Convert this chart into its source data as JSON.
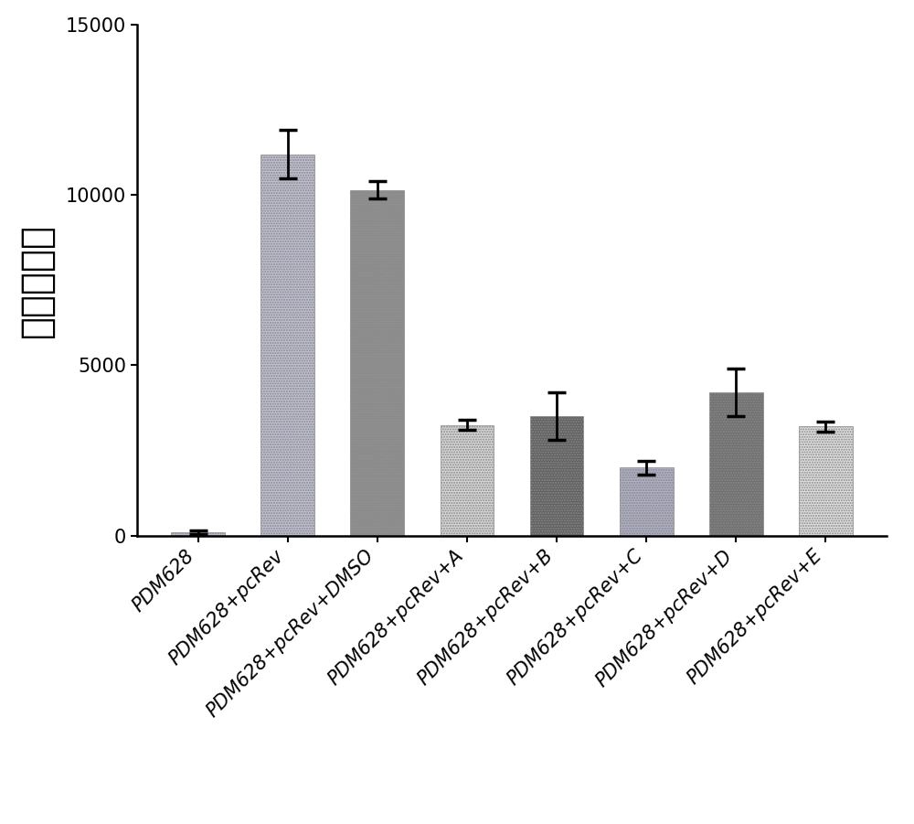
{
  "categories": [
    "PDM628",
    "PDM628+pcRev",
    "PDM628+pcRev+DMSO",
    "PDM628+pcRev+A",
    "PDM628+pcRev+B",
    "PDM628+pcRev+C",
    "PDM628+pcRev+D",
    "PDM628+pcRev+E"
  ],
  "values": [
    100,
    11200,
    10150,
    3250,
    3500,
    2000,
    4200,
    3200
  ],
  "errors": [
    50,
    700,
    250,
    150,
    700,
    200,
    700,
    150
  ],
  "bar_colors": [
    "#c0c0d4",
    "#c0c0d4",
    "#909090",
    "#d8d8d8",
    "#606060",
    "#b0b0c8",
    "#707070",
    "#e0e0e0"
  ],
  "ylabel": "荧光醂读数",
  "ylim": [
    0,
    15000
  ],
  "yticks": [
    0,
    5000,
    10000,
    15000
  ],
  "figure_bg": "#ffffff",
  "axes_bg": "#ffffff",
  "bar_edge_color": "#888888",
  "error_color": "#000000",
  "ylabel_fontsize": 30,
  "tick_fontsize": 15,
  "xtick_fontsize": 15
}
